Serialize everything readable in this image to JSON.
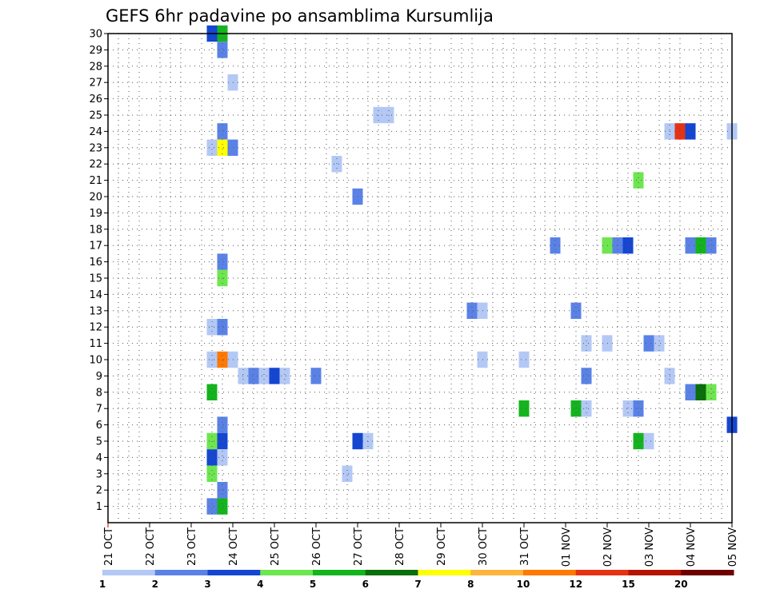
{
  "chart_data": {
    "type": "heatmap",
    "title": "GEFS 6hr padavine po ansamblima Kursumlija",
    "x_ticks": [
      "21 OCT",
      "22 OCT",
      "23 OCT",
      "24 OCT",
      "25 OCT",
      "26 OCT",
      "27 OCT",
      "28 OCT",
      "29 OCT",
      "30 OCT",
      "31 OCT",
      "01 NOV",
      "02 NOV",
      "03 NOV",
      "04 NOV",
      "05 NOV"
    ],
    "y_ticks": [
      1,
      2,
      3,
      4,
      5,
      6,
      7,
      8,
      9,
      10,
      11,
      12,
      13,
      14,
      15,
      16,
      17,
      18,
      19,
      20,
      21,
      22,
      23,
      24,
      25,
      26,
      27,
      28,
      29,
      30
    ],
    "x_range_days": [
      0,
      15
    ],
    "y_range": [
      0,
      30
    ],
    "grid": true,
    "colorbar": {
      "labels": [
        "1",
        "2",
        "3",
        "4",
        "5",
        "6",
        "7",
        "8",
        "10",
        "12",
        "15",
        "20"
      ],
      "colors": [
        "#b4c8f5",
        "#5a82e6",
        "#1446d2",
        "#6ee650",
        "#14b41e",
        "#0a6e0a",
        "#ffff00",
        "#ffb43c",
        "#ff7800",
        "#e63214",
        "#b41400",
        "#6e0000"
      ]
    },
    "cells_note_units": "x = day offset from 21 OCT 00Z, y = ensemble member, c = colour class index",
    "cells": [
      {
        "x": 2.5,
        "y": 30,
        "c": 2
      },
      {
        "x": 2.75,
        "y": 30,
        "c": 4
      },
      {
        "x": 2.75,
        "y": 29,
        "c": 1
      },
      {
        "x": 3.0,
        "y": 27,
        "c": 0
      },
      {
        "x": 6.5,
        "y": 25,
        "c": 0
      },
      {
        "x": 6.75,
        "y": 25,
        "c": 0
      },
      {
        "x": 2.75,
        "y": 24,
        "c": 1
      },
      {
        "x": 13.5,
        "y": 24,
        "c": 0
      },
      {
        "x": 13.75,
        "y": 24,
        "c": 9
      },
      {
        "x": 14.0,
        "y": 24,
        "c": 2
      },
      {
        "x": 15.0,
        "y": 24,
        "c": 0
      },
      {
        "x": 2.5,
        "y": 23,
        "c": 0
      },
      {
        "x": 2.75,
        "y": 23,
        "c": 6
      },
      {
        "x": 3.0,
        "y": 23,
        "c": 1
      },
      {
        "x": 5.5,
        "y": 22,
        "c": 0
      },
      {
        "x": 12.75,
        "y": 21,
        "c": 3
      },
      {
        "x": 6.0,
        "y": 20,
        "c": 1
      },
      {
        "x": 10.75,
        "y": 17,
        "c": 1
      },
      {
        "x": 12.0,
        "y": 17,
        "c": 3
      },
      {
        "x": 12.25,
        "y": 17,
        "c": 1
      },
      {
        "x": 12.5,
        "y": 17,
        "c": 2
      },
      {
        "x": 14.0,
        "y": 17,
        "c": 1
      },
      {
        "x": 14.25,
        "y": 17,
        "c": 4
      },
      {
        "x": 14.5,
        "y": 17,
        "c": 1
      },
      {
        "x": 2.75,
        "y": 16,
        "c": 1
      },
      {
        "x": 2.75,
        "y": 15,
        "c": 3
      },
      {
        "x": 8.75,
        "y": 13,
        "c": 1
      },
      {
        "x": 9.0,
        "y": 13,
        "c": 0
      },
      {
        "x": 11.25,
        "y": 13,
        "c": 1
      },
      {
        "x": 2.5,
        "y": 12,
        "c": 0
      },
      {
        "x": 2.75,
        "y": 12,
        "c": 1
      },
      {
        "x": 11.5,
        "y": 11,
        "c": 0
      },
      {
        "x": 12.0,
        "y": 11,
        "c": 0
      },
      {
        "x": 13.0,
        "y": 11,
        "c": 1
      },
      {
        "x": 13.25,
        "y": 11,
        "c": 0
      },
      {
        "x": 2.5,
        "y": 10,
        "c": 0
      },
      {
        "x": 2.75,
        "y": 10,
        "c": 8
      },
      {
        "x": 3.0,
        "y": 10,
        "c": 0
      },
      {
        "x": 9.0,
        "y": 10,
        "c": 0
      },
      {
        "x": 10.0,
        "y": 10,
        "c": 0
      },
      {
        "x": 3.25,
        "y": 9,
        "c": 0
      },
      {
        "x": 3.5,
        "y": 9,
        "c": 1
      },
      {
        "x": 3.75,
        "y": 9,
        "c": 0
      },
      {
        "x": 4.0,
        "y": 9,
        "c": 2
      },
      {
        "x": 4.25,
        "y": 9,
        "c": 0
      },
      {
        "x": 5.0,
        "y": 9,
        "c": 1
      },
      {
        "x": 11.5,
        "y": 9,
        "c": 1
      },
      {
        "x": 13.5,
        "y": 9,
        "c": 0
      },
      {
        "x": 2.5,
        "y": 8,
        "c": 4
      },
      {
        "x": 14.0,
        "y": 8,
        "c": 1
      },
      {
        "x": 14.25,
        "y": 8,
        "c": 5
      },
      {
        "x": 14.5,
        "y": 8,
        "c": 3
      },
      {
        "x": 10.0,
        "y": 7,
        "c": 4
      },
      {
        "x": 11.25,
        "y": 7,
        "c": 4
      },
      {
        "x": 11.5,
        "y": 7,
        "c": 0
      },
      {
        "x": 12.5,
        "y": 7,
        "c": 0
      },
      {
        "x": 12.75,
        "y": 7,
        "c": 1
      },
      {
        "x": 2.75,
        "y": 6,
        "c": 1
      },
      {
        "x": 15.0,
        "y": 6,
        "c": 2
      },
      {
        "x": 2.5,
        "y": 5,
        "c": 3
      },
      {
        "x": 2.75,
        "y": 5,
        "c": 2
      },
      {
        "x": 6.0,
        "y": 5,
        "c": 2
      },
      {
        "x": 6.25,
        "y": 5,
        "c": 0
      },
      {
        "x": 12.75,
        "y": 5,
        "c": 4
      },
      {
        "x": 13.0,
        "y": 5,
        "c": 0
      },
      {
        "x": 2.5,
        "y": 4,
        "c": 2
      },
      {
        "x": 2.75,
        "y": 4,
        "c": 0
      },
      {
        "x": 2.5,
        "y": 3,
        "c": 3
      },
      {
        "x": 5.75,
        "y": 3,
        "c": 0
      },
      {
        "x": 2.75,
        "y": 2,
        "c": 1
      },
      {
        "x": 2.5,
        "y": 1,
        "c": 1
      },
      {
        "x": 2.75,
        "y": 1,
        "c": 4
      }
    ]
  }
}
